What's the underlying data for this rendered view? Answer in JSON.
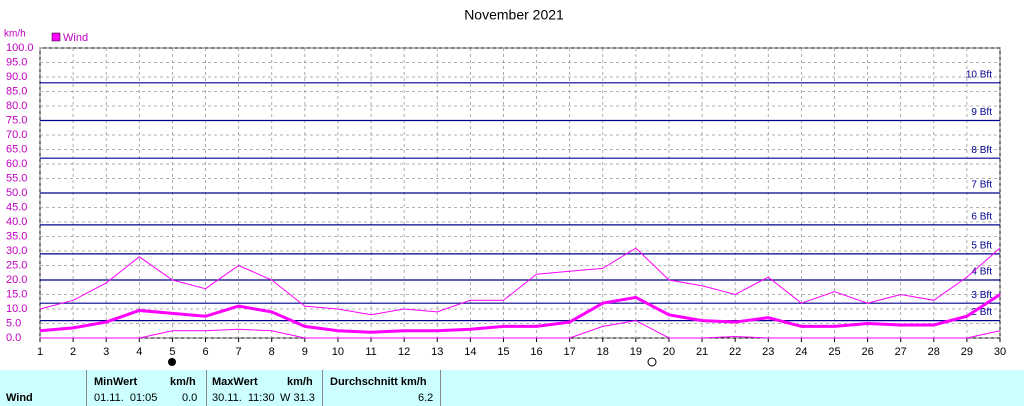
{
  "chart_data": {
    "type": "line",
    "title": "November 2021",
    "ylabel": "km/h",
    "x": [
      1,
      2,
      3,
      4,
      5,
      6,
      7,
      8,
      9,
      10,
      11,
      12,
      13,
      14,
      15,
      16,
      17,
      18,
      19,
      20,
      21,
      22,
      23,
      24,
      25,
      26,
      27,
      28,
      29,
      30
    ],
    "xlim": [
      1,
      30
    ],
    "series": [
      {
        "name": "Wind",
        "color": "#ff00ff",
        "values": [
          2.5,
          3.5,
          5.5,
          9.5,
          8.5,
          7.5,
          11,
          9,
          4,
          2.5,
          2,
          2.5,
          2.5,
          3,
          4,
          4,
          5.5,
          12,
          14,
          8,
          6,
          5.5,
          7,
          4,
          4,
          5,
          4.5,
          4.5,
          7.5,
          15
        ],
        "max": [
          10,
          13,
          19,
          28,
          20,
          17,
          25,
          20,
          11,
          10,
          8,
          10,
          9,
          13,
          13,
          22,
          23,
          24,
          31,
          20,
          18,
          15,
          21,
          12,
          16,
          12,
          15,
          13,
          21,
          31
        ],
        "min": [
          0,
          0,
          0,
          0,
          2.5,
          2.5,
          3,
          2.5,
          0,
          0,
          0,
          0,
          0,
          0,
          0,
          0,
          0,
          4,
          6,
          0,
          0,
          0.5,
          0,
          0,
          0,
          0,
          0,
          0,
          0,
          2.5
        ]
      }
    ],
    "ylim": [
      0,
      100
    ],
    "yticks": [
      {
        "value": 0,
        "label": "0.0"
      },
      {
        "value": 5,
        "label": "5.0"
      },
      {
        "value": 10,
        "label": "10.0"
      },
      {
        "value": 15,
        "label": "15.0"
      },
      {
        "value": 20,
        "label": "20.0"
      },
      {
        "value": 25,
        "label": "25.0"
      },
      {
        "value": 30,
        "label": "30.0"
      },
      {
        "value": 35,
        "label": "35.0"
      },
      {
        "value": 40,
        "label": "40.0"
      },
      {
        "value": 45,
        "label": "45.0"
      },
      {
        "value": 50,
        "label": "50.0"
      },
      {
        "value": 55,
        "label": "55.0"
      },
      {
        "value": 60,
        "label": "60.0"
      },
      {
        "value": 65,
        "label": "65.0"
      },
      {
        "value": 70,
        "label": "70.0"
      },
      {
        "value": 75,
        "label": "75.0"
      },
      {
        "value": 80,
        "label": "80.0"
      },
      {
        "value": 85,
        "label": "85.0"
      },
      {
        "value": 90,
        "label": "90.0"
      },
      {
        "value": 95,
        "label": "95.0"
      },
      {
        "value": 100,
        "label": "100.0"
      }
    ],
    "beaufort": [
      {
        "value": 6,
        "label": "2 Bft"
      },
      {
        "value": 12,
        "label": "3 Bft"
      },
      {
        "value": 20,
        "label": "4 Bft"
      },
      {
        "value": 29,
        "label": "5 Bft"
      },
      {
        "value": 39,
        "label": "6 Bft"
      },
      {
        "value": 50,
        "label": "7 Bft"
      },
      {
        "value": 62,
        "label": "8 Bft"
      },
      {
        "value": 75,
        "label": "9 Bft"
      },
      {
        "value": 88,
        "label": "10 Bft"
      }
    ],
    "grid": true
  },
  "table": {
    "row_label": "Wind",
    "min": {
      "header": "MinWert",
      "unit": "km/h",
      "time": "01.11.  01:05",
      "value": "0.0"
    },
    "max": {
      "header": "MaxWert",
      "unit": "km/h",
      "time": "30.11.  11:30",
      "value": "W 31.3"
    },
    "avg": {
      "header": "Durchschnitt km/h",
      "value": "6.2"
    }
  }
}
